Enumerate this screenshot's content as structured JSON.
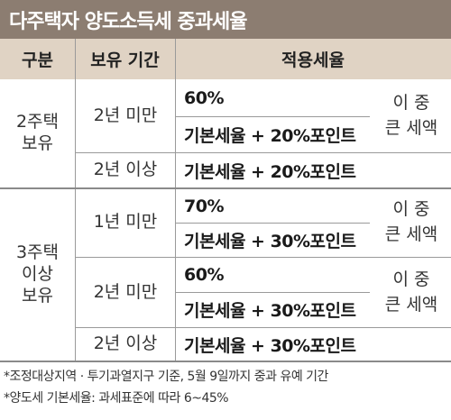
{
  "title": "다주택자 양도소득세 중과세율",
  "header": {
    "col1": "구분",
    "col2": "보유 기간",
    "col3": "적용세율"
  },
  "groups": [
    {
      "category": [
        "2주택",
        "보유"
      ],
      "rows": [
        {
          "period": "2년 미만",
          "rates": [
            "60%",
            "기본세율 + 20%포인트"
          ],
          "note": [
            "이 중",
            "큰 세액"
          ]
        },
        {
          "period": "2년 이상",
          "rates": [
            "기본세율 + 20%포인트"
          ]
        }
      ]
    },
    {
      "category": [
        "3주택",
        "이상",
        "보유"
      ],
      "rows": [
        {
          "period": "1년 미만",
          "rates": [
            "70%",
            "기본세율 + 30%포인트"
          ],
          "note": [
            "이 중",
            "큰 세액"
          ]
        },
        {
          "period": "2년 미만",
          "rates": [
            "60%",
            "기본세율 + 30%포인트"
          ],
          "note": [
            "이 중",
            "큰 세액"
          ]
        },
        {
          "period": "2년 이상",
          "rates": [
            "기본세율 + 30%포인트"
          ]
        }
      ]
    }
  ],
  "footnotes": [
    "*조정대상지역 · 투기과열지구 기준, 5월 9일까지 중과 유예 기간",
    "*양도세 기본세율: 과세표준에 따라 6~45%"
  ],
  "colors": {
    "title_bg": "#8c7d71",
    "header_bg": "#e0d3c4"
  }
}
